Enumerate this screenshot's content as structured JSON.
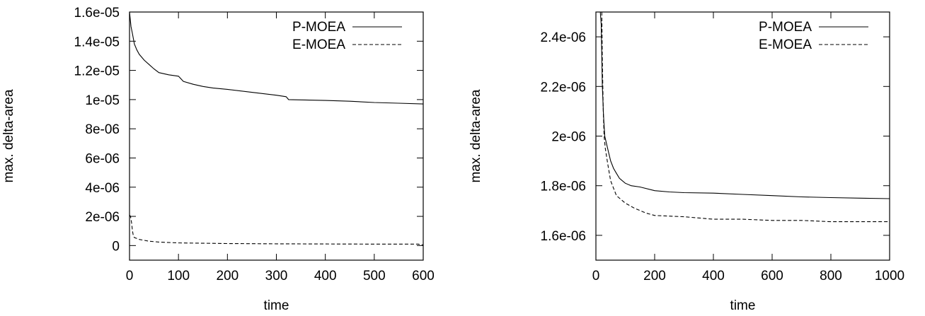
{
  "chart_data": [
    {
      "type": "line",
      "title": "",
      "xlabel": "time",
      "ylabel": "max. delta-area",
      "xlim": [
        0,
        600
      ],
      "ylim": [
        -1e-06,
        1.6e-05
      ],
      "x_ticks": [
        0,
        100,
        200,
        300,
        400,
        500,
        600
      ],
      "x_tick_labels": [
        "0",
        "100",
        "200",
        "300",
        "400",
        "500",
        "600"
      ],
      "y_ticks": [
        0,
        2e-06,
        4e-06,
        6e-06,
        8e-06,
        1e-05,
        1.2e-05,
        1.4e-05,
        1.6e-05
      ],
      "y_tick_labels": [
        "0",
        "2e-06",
        "4e-06",
        "6e-06",
        "8e-06",
        "1e-05",
        "1.2e-05",
        "1.4e-05",
        "1.6e-05"
      ],
      "grid": false,
      "legend_position": "top-right",
      "series": [
        {
          "name": "P-MOEA",
          "style": "solid",
          "x": [
            0,
            3,
            6,
            10,
            15,
            20,
            30,
            40,
            50,
            60,
            80,
            100,
            110,
            130,
            150,
            170,
            200,
            250,
            300,
            320,
            325,
            350,
            400,
            450,
            500,
            550,
            600
          ],
          "y": [
            1.6e-05,
            1.5e-05,
            1.45e-05,
            1.38e-05,
            1.34e-05,
            1.31e-05,
            1.27e-05,
            1.24e-05,
            1.21e-05,
            1.185e-05,
            1.17e-05,
            1.16e-05,
            1.125e-05,
            1.105e-05,
            1.09e-05,
            1.08e-05,
            1.07e-05,
            1.05e-05,
            1.03e-05,
            1.02e-05,
            1e-05,
            9.98e-06,
            9.94e-06,
            9.89e-06,
            9.8e-06,
            9.75e-06,
            9.7e-06
          ]
        },
        {
          "name": "E-MOEA",
          "style": "dashed",
          "x": [
            0,
            2,
            4,
            6,
            8,
            10,
            20,
            40,
            60,
            100,
            200,
            300,
            400,
            500,
            590,
            595,
            600
          ],
          "y": [
            2.1e-06,
            2e-06,
            1.6e-06,
            1e-06,
            6.5e-07,
            5.5e-07,
            4.2e-07,
            3e-07,
            2.4e-07,
            1.8e-07,
            1.4e-07,
            1.2e-07,
            1.1e-07,
            1e-07,
            1e-07,
            5e-08,
            5e-08
          ]
        }
      ]
    },
    {
      "type": "line",
      "title": "",
      "xlabel": "time",
      "ylabel": "max. delta-area",
      "xlim": [
        0,
        1000
      ],
      "ylim": [
        1.5e-06,
        2.5e-06
      ],
      "x_ticks": [
        0,
        200,
        400,
        600,
        800,
        1000
      ],
      "x_tick_labels": [
        "0",
        "200",
        "400",
        "600",
        "800",
        "1000"
      ],
      "y_ticks": [
        1.6e-06,
        1.8e-06,
        2e-06,
        2.2e-06,
        2.4e-06
      ],
      "y_tick_labels": [
        "1.6e-06",
        "1.8e-06",
        "2e-06",
        "2.2e-06",
        "2.4e-06"
      ],
      "grid": false,
      "legend_position": "top-right",
      "series": [
        {
          "name": "P-MOEA",
          "style": "solid",
          "x": [
            15,
            18,
            22,
            26,
            30,
            40,
            50,
            60,
            70,
            80,
            100,
            120,
            150,
            200,
            250,
            300,
            400,
            500,
            600,
            700,
            800,
            900,
            1000
          ],
          "y": [
            2.5e-06,
            2.45e-06,
            2.2e-06,
            2.08e-06,
            2e-06,
            1.95e-06,
            1.9e-06,
            1.87e-06,
            1.85e-06,
            1.83e-06,
            1.81e-06,
            1.8e-06,
            1.795e-06,
            1.78e-06,
            1.775e-06,
            1.772e-06,
            1.77e-06,
            1.765e-06,
            1.76e-06,
            1.755e-06,
            1.752e-06,
            1.75e-06,
            1.748e-06
          ]
        },
        {
          "name": "E-MOEA",
          "style": "dashed",
          "x": [
            20,
            22,
            25,
            28,
            32,
            40,
            50,
            70,
            100,
            130,
            170,
            200,
            300,
            400,
            500,
            600,
            700,
            800,
            900,
            1000
          ],
          "y": [
            2.5e-06,
            2.3e-06,
            2.1e-06,
            2e-06,
            1.95e-06,
            1.89e-06,
            1.82e-06,
            1.76e-06,
            1.73e-06,
            1.71e-06,
            1.69e-06,
            1.68e-06,
            1.675e-06,
            1.665e-06,
            1.665e-06,
            1.66e-06,
            1.66e-06,
            1.655e-06,
            1.655e-06,
            1.655e-06
          ]
        }
      ]
    }
  ]
}
